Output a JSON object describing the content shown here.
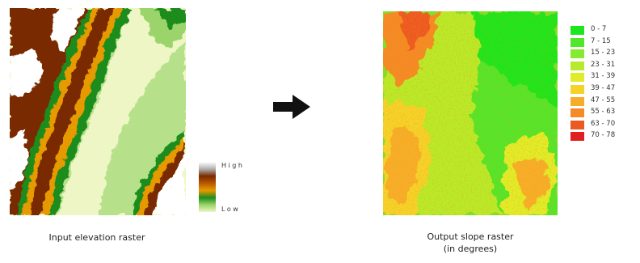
{
  "input": {
    "caption": "Input elevation raster",
    "legend": {
      "high_label": "High",
      "low_label": "Low"
    }
  },
  "output": {
    "caption_line1": "Output slope raster",
    "caption_line2": "(in degrees)",
    "legend": [
      {
        "label": "0 - 7",
        "color": "#1ee61e"
      },
      {
        "label": "7 - 15",
        "color": "#52e62c"
      },
      {
        "label": "15 - 23",
        "color": "#86ea30"
      },
      {
        "label": "23 - 31",
        "color": "#b8ea2c"
      },
      {
        "label": "31 - 39",
        "color": "#e0ec2a"
      },
      {
        "label": "39 - 47",
        "color": "#f4d22a"
      },
      {
        "label": "47 - 55",
        "color": "#f6ae2a"
      },
      {
        "label": "55 - 63",
        "color": "#f48a28"
      },
      {
        "label": "63 - 70",
        "color": "#ec5a24"
      },
      {
        "label": "70 - 78",
        "color": "#e02020"
      }
    ]
  },
  "colors": {
    "elevation_ramp": [
      "#ffffff",
      "#b0b0b0",
      "#7a2a00",
      "#b85a00",
      "#e69a00",
      "#1e8c1e",
      "#9ad46a",
      "#eef6c6"
    ],
    "arrow": "#111111"
  },
  "icons": {
    "flow_arrow": "right-arrow-icon"
  }
}
